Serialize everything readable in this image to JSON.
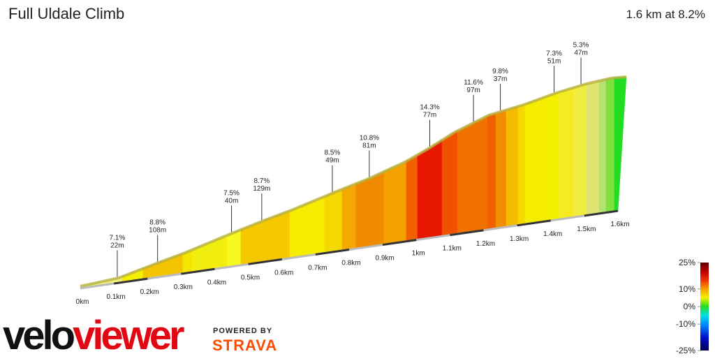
{
  "chart_data": {
    "type": "profile",
    "title": "Full Uldale Climb",
    "summary": "1.6 km at 8.2%",
    "xlim": [
      0,
      1.6
    ],
    "xticks": [
      {
        "value": 0,
        "label": "0km"
      },
      {
        "value": 0.1,
        "label": "0.1km"
      },
      {
        "value": 0.2,
        "label": "0.2km"
      },
      {
        "value": 0.3,
        "label": "0.3km"
      },
      {
        "value": 0.4,
        "label": "0.4km"
      },
      {
        "value": 0.5,
        "label": "0.5km"
      },
      {
        "value": 0.6,
        "label": "0.6km"
      },
      {
        "value": 0.7,
        "label": "0.7km"
      },
      {
        "value": 0.8,
        "label": "0.8km"
      },
      {
        "value": 0.9,
        "label": "0.9km"
      },
      {
        "value": 1,
        "label": "1km"
      },
      {
        "value": 1.1,
        "label": "1.1km"
      },
      {
        "value": 1.2,
        "label": "1.2km"
      },
      {
        "value": 1.3,
        "label": "1.3km"
      },
      {
        "value": 1.4,
        "label": "1.4km"
      },
      {
        "value": 1.5,
        "label": "1.5km"
      },
      {
        "value": 1.6,
        "label": "1.6km"
      }
    ],
    "annotations": {
      "x": [
        0.11,
        0.23,
        0.45,
        0.54,
        0.75,
        0.86,
        1.04,
        1.17,
        1.25,
        1.41,
        1.49
      ],
      "grades": [
        7.1,
        8.8,
        7.5,
        8.7,
        8.5,
        10.8,
        14.3,
        11.6,
        9.8,
        7.3,
        5.3
      ],
      "grade_labels": [
        "7.1%",
        "8.8%",
        "7.5%",
        "8.7%",
        "8.5%",
        "10.8%",
        "14.3%",
        "11.6%",
        "9.8%",
        "7.3%",
        "5.3%"
      ],
      "lengths": [
        22,
        108,
        40,
        129,
        49,
        81,
        77,
        97,
        37,
        51,
        47
      ],
      "length_labels": [
        "22m",
        "108m",
        "40m",
        "129m",
        "49m",
        "81m",
        "77m",
        "97m",
        "37m",
        "51m",
        "47m"
      ]
    },
    "colorbar": {
      "ylim": [
        -25,
        25
      ],
      "yticks": [
        {
          "value": 25,
          "label": "25%"
        },
        {
          "value": 10,
          "label": "10%"
        },
        {
          "value": 0,
          "label": "0%"
        },
        {
          "value": -10,
          "label": "-10%"
        },
        {
          "value": -25,
          "label": "-25%"
        }
      ]
    },
    "logo": {
      "velo": "velo",
      "viewer": "viewer",
      "powered_by": "POWERED BY",
      "strava": "STRAVA"
    }
  }
}
